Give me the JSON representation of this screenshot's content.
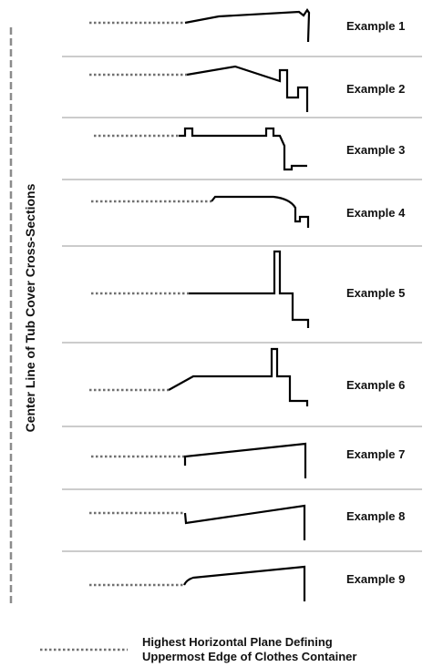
{
  "axis_label": "Center Line of Tub Cover Cross-Sections",
  "examples": [
    {
      "label": "Example 1"
    },
    {
      "label": "Example 2"
    },
    {
      "label": "Example 3"
    },
    {
      "label": "Example 4"
    },
    {
      "label": "Example 5"
    },
    {
      "label": "Example 6"
    },
    {
      "label": "Example 7"
    },
    {
      "label": "Example 8"
    },
    {
      "label": "Example 9"
    }
  ],
  "legend": {
    "line1": "Highest Horizontal Plane Defining",
    "line2": "Uppermost Edge of Clothes Container"
  }
}
